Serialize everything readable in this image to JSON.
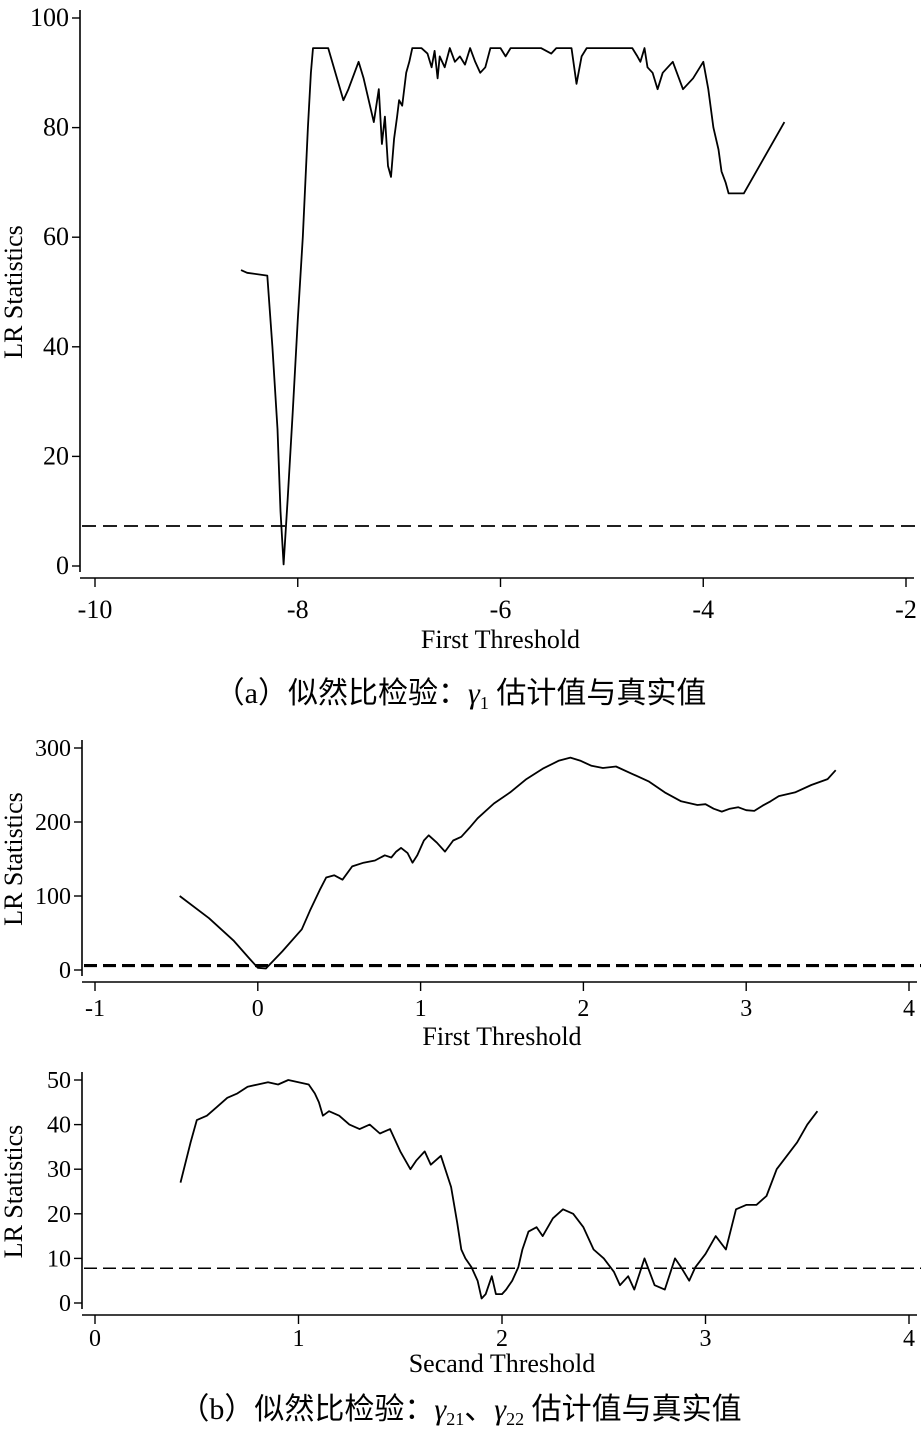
{
  "chart_data": [
    {
      "type": "line",
      "xlabel": "First Threshold",
      "ylabel": "LR Statistics",
      "xlim": [
        -10,
        -2
      ],
      "ylim": [
        0,
        100
      ],
      "xticks": [
        "-10",
        "-8",
        "-6",
        "-4",
        "-2"
      ],
      "yticks": [
        "0",
        "20",
        "40",
        "60",
        "80",
        "100"
      ],
      "critical_value": 7.3,
      "series": [
        {
          "x": [
            -8.56,
            -8.5,
            -8.3,
            -8.25,
            -8.2,
            -8.17,
            -8.14,
            -8.1,
            -8.05,
            -8.0,
            -7.95,
            -7.9,
            -7.87,
            -7.85,
            -7.82,
            -7.7,
            -7.55,
            -7.5,
            -7.4,
            -7.35,
            -7.25,
            -7.2,
            -7.17,
            -7.14,
            -7.11,
            -7.08,
            -7.05,
            -7.02,
            -7.0,
            -6.97,
            -6.93,
            -6.9,
            -6.87,
            -6.82,
            -6.78,
            -6.72,
            -6.68,
            -6.65,
            -6.62,
            -6.6,
            -6.55,
            -6.5,
            -6.45,
            -6.4,
            -6.35,
            -6.3,
            -6.25,
            -6.2,
            -6.15,
            -6.1,
            -6.05,
            -6.0,
            -5.95,
            -5.9,
            -5.85,
            -5.8,
            -5.6,
            -5.5,
            -5.45,
            -5.4,
            -5.35,
            -5.3,
            -5.25,
            -5.2,
            -5.15,
            -5.1,
            -5.05,
            -5.0,
            -4.95,
            -4.9,
            -4.85,
            -4.8,
            -4.75,
            -4.7,
            -4.65,
            -4.62,
            -4.58,
            -4.55,
            -4.5,
            -4.45,
            -4.4,
            -4.3,
            -4.2,
            -4.1,
            -4.0,
            -3.95,
            -3.9,
            -3.85,
            -3.82,
            -3.78,
            -3.75,
            -3.6,
            -3.2
          ],
          "y": [
            54.0,
            53.5,
            53.0,
            40.0,
            25.0,
            10.0,
            0.3,
            12.0,
            28.0,
            45.0,
            60.0,
            80.0,
            90.0,
            94.5,
            94.5,
            94.5,
            85.0,
            87.0,
            92.0,
            89.0,
            81.0,
            87.0,
            77.0,
            82.0,
            73.0,
            71.0,
            78.0,
            82.0,
            85.0,
            84.0,
            90.0,
            92.0,
            94.5,
            94.5,
            94.5,
            93.5,
            91.0,
            94.0,
            89.0,
            93.0,
            91.0,
            94.5,
            92.0,
            93.0,
            91.5,
            94.5,
            92.0,
            90.0,
            91.0,
            94.5,
            94.5,
            94.5,
            93.0,
            94.5,
            94.5,
            94.5,
            94.5,
            93.5,
            94.5,
            94.5,
            94.5,
            94.5,
            88.0,
            93.0,
            94.5,
            94.5,
            94.5,
            94.5,
            94.5,
            94.5,
            94.5,
            94.5,
            94.5,
            94.5,
            93.0,
            92.0,
            94.5,
            91.0,
            90.0,
            87.0,
            90.0,
            92.0,
            87.0,
            89.0,
            92.0,
            87.0,
            80.0,
            76.0,
            72.0,
            70.0,
            68.0,
            68.0,
            81.0
          ]
        }
      ]
    },
    {
      "type": "line",
      "xlabel": "First Threshold",
      "ylabel": "LR Statistics",
      "xlim": [
        -1,
        4
      ],
      "ylim": [
        0,
        300
      ],
      "xticks": [
        "-1",
        "0",
        "1",
        "2",
        "3",
        "4"
      ],
      "yticks": [
        "0",
        "100",
        "200",
        "300"
      ],
      "critical_value": 6.0,
      "series": [
        {
          "x": [
            -0.48,
            -0.3,
            -0.15,
            -0.05,
            0.0,
            0.05,
            0.15,
            0.27,
            0.32,
            0.38,
            0.42,
            0.47,
            0.52,
            0.58,
            0.65,
            0.72,
            0.78,
            0.82,
            0.85,
            0.88,
            0.92,
            0.95,
            0.98,
            1.02,
            1.05,
            1.1,
            1.15,
            1.2,
            1.25,
            1.3,
            1.35,
            1.45,
            1.55,
            1.65,
            1.75,
            1.85,
            1.92,
            1.98,
            2.05,
            2.12,
            2.2,
            2.3,
            2.4,
            2.5,
            2.6,
            2.7,
            2.75,
            2.8,
            2.85,
            2.9,
            2.95,
            3.0,
            3.05,
            3.1,
            3.15,
            3.2,
            3.3,
            3.4,
            3.5,
            3.55
          ],
          "y": [
            100,
            70,
            40,
            15,
            3,
            2,
            25,
            55,
            80,
            108,
            125,
            128,
            122,
            140,
            145,
            148,
            155,
            152,
            160,
            165,
            158,
            145,
            155,
            175,
            182,
            172,
            160,
            175,
            180,
            192,
            205,
            225,
            240,
            258,
            272,
            283,
            287,
            283,
            276,
            273,
            275,
            265,
            255,
            240,
            228,
            223,
            224,
            218,
            214,
            218,
            220,
            216,
            215,
            222,
            228,
            235,
            240,
            250,
            258,
            270
          ]
        }
      ]
    },
    {
      "type": "line",
      "xlabel": "Secand Threshold",
      "ylabel": "LR Statistics",
      "xlim": [
        0,
        4
      ],
      "ylim": [
        0,
        50
      ],
      "xticks": [
        "0",
        "1",
        "2",
        "3",
        "4"
      ],
      "yticks": [
        "0",
        "10",
        "20",
        "30",
        "40",
        "50"
      ],
      "critical_value": 7.8,
      "series": [
        {
          "x": [
            0.42,
            0.47,
            0.5,
            0.55,
            0.6,
            0.65,
            0.7,
            0.75,
            0.8,
            0.85,
            0.9,
            0.95,
            1.0,
            1.05,
            1.08,
            1.1,
            1.12,
            1.15,
            1.2,
            1.25,
            1.3,
            1.35,
            1.4,
            1.45,
            1.5,
            1.55,
            1.58,
            1.62,
            1.65,
            1.7,
            1.75,
            1.78,
            1.8,
            1.82,
            1.85,
            1.88,
            1.9,
            1.92,
            1.95,
            1.97,
            2.0,
            2.02,
            2.05,
            2.08,
            2.1,
            2.13,
            2.17,
            2.2,
            2.25,
            2.3,
            2.35,
            2.4,
            2.45,
            2.5,
            2.55,
            2.58,
            2.62,
            2.65,
            2.7,
            2.75,
            2.8,
            2.85,
            2.88,
            2.92,
            2.95,
            3.0,
            3.05,
            3.1,
            3.15,
            3.2,
            3.25,
            3.3,
            3.35,
            3.4,
            3.45,
            3.5,
            3.55
          ],
          "y": [
            27,
            36,
            41,
            42,
            44,
            46,
            47,
            48.5,
            49,
            49.5,
            49,
            50,
            49.5,
            49,
            47,
            45,
            42,
            43,
            42,
            40,
            39,
            40,
            38,
            39,
            34,
            30,
            32,
            34,
            31,
            33,
            26,
            18,
            12,
            10,
            8,
            5,
            1,
            2,
            6,
            2,
            2,
            3,
            5,
            8,
            12,
            16,
            17,
            15,
            19,
            21,
            20,
            17,
            12,
            10,
            7,
            4,
            6,
            3,
            10,
            4,
            3,
            10,
            8,
            5,
            8,
            11,
            15,
            12,
            21,
            22,
            22,
            24,
            30,
            33,
            36,
            40,
            43
          ]
        }
      ]
    }
  ],
  "captions": {
    "a_prefix": "（a）似然比检验：",
    "a_symbol": "γ",
    "a_sub": "1",
    "a_suffix": " 估计值与真实值",
    "b_prefix": "（b）似然比检验：",
    "b_symbol1": "γ",
    "b_sub1": "21",
    "b_sep": "、",
    "b_symbol2": "γ",
    "b_sub2": "22",
    "b_suffix": " 估计值与真实值"
  },
  "colors": {
    "line": "#000000",
    "axis": "#000000",
    "background": "#ffffff"
  }
}
